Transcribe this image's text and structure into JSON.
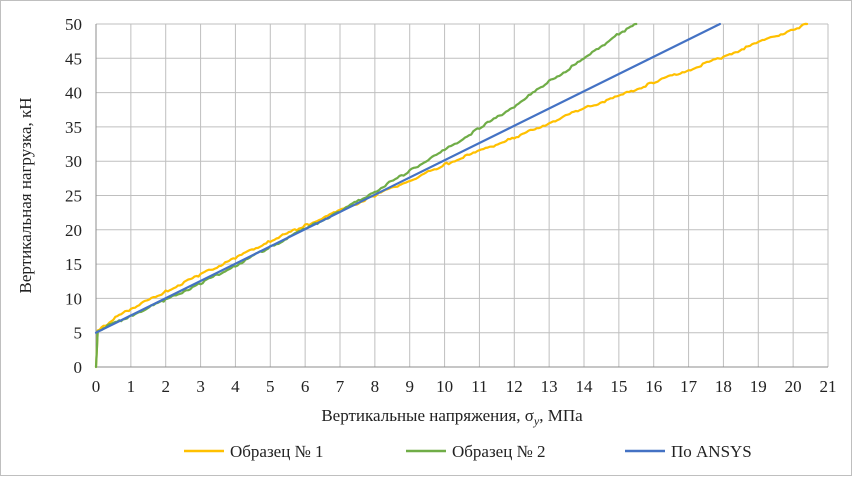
{
  "chart_data": {
    "type": "line",
    "xlabel": "Вертикальные напряжения, σ",
    "xlabel_sub": "y",
    "xlabel_unit": ", МПа",
    "ylabel": "Вертикальная нагрузка, кН",
    "xlim": [
      0,
      21
    ],
    "ylim": [
      0,
      50
    ],
    "x_ticks": [
      "0",
      "1",
      "2",
      "3",
      "4",
      "5",
      "6",
      "7",
      "8",
      "9",
      "10",
      "11",
      "12",
      "13",
      "14",
      "15",
      "16",
      "17",
      "18",
      "19",
      "20",
      "21"
    ],
    "y_ticks": [
      "0",
      "5",
      "10",
      "15",
      "20",
      "25",
      "30",
      "35",
      "40",
      "45",
      "50"
    ],
    "grid": true,
    "legend_position": "bottom",
    "series": [
      {
        "name": "Образец № 1",
        "color": "#FFC000",
        "x": [
          0,
          0.05,
          0.5,
          1,
          2,
          3,
          4,
          5,
          6,
          7,
          8,
          9,
          10,
          11,
          12,
          13,
          14,
          15,
          16,
          17,
          18,
          19,
          20,
          20.4
        ],
        "y": [
          0,
          5.2,
          7.0,
          8.5,
          11.0,
          13.5,
          15.9,
          18.4,
          20.6,
          22.8,
          25.0,
          27.2,
          29.5,
          31.5,
          33.4,
          35.6,
          37.7,
          39.5,
          41.5,
          43.3,
          45.2,
          47.3,
          49.2,
          50.0
        ]
      },
      {
        "name": "Образец № 2",
        "color": "#70AD47",
        "x": [
          0,
          0.05,
          1,
          2,
          3,
          4,
          5,
          6,
          7,
          8,
          9,
          10,
          11,
          12,
          13,
          14,
          15,
          15.5
        ],
        "y": [
          0,
          5.3,
          7.5,
          9.8,
          12.2,
          14.8,
          17.5,
          20.1,
          22.7,
          25.6,
          28.6,
          31.6,
          34.8,
          38.0,
          41.6,
          44.9,
          48.6,
          50.0
        ]
      },
      {
        "name": "По ANSYS",
        "color": "#4472C4",
        "x": [
          0,
          17.9
        ],
        "y": [
          5.0,
          50.0
        ]
      }
    ]
  }
}
